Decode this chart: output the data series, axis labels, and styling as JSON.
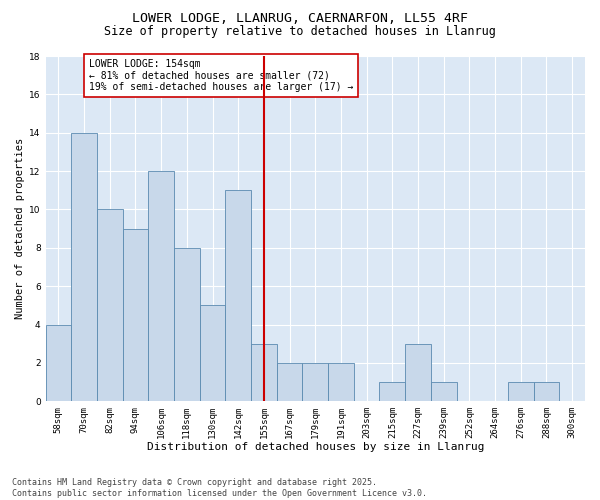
{
  "title_line1": "LOWER LODGE, LLANRUG, CAERNARFON, LL55 4RF",
  "title_line2": "Size of property relative to detached houses in Llanrug",
  "xlabel": "Distribution of detached houses by size in Llanrug",
  "ylabel": "Number of detached properties",
  "categories": [
    "58sqm",
    "70sqm",
    "82sqm",
    "94sqm",
    "106sqm",
    "118sqm",
    "130sqm",
    "142sqm",
    "155sqm",
    "167sqm",
    "179sqm",
    "191sqm",
    "203sqm",
    "215sqm",
    "227sqm",
    "239sqm",
    "252sqm",
    "264sqm",
    "276sqm",
    "288sqm",
    "300sqm"
  ],
  "values": [
    4,
    14,
    10,
    9,
    12,
    8,
    5,
    11,
    3,
    2,
    2,
    2,
    0,
    1,
    3,
    1,
    0,
    0,
    1,
    1,
    0
  ],
  "bar_color": "#c8d8ea",
  "bar_edge_color": "#5a8ab0",
  "highlight_index": 8,
  "highlight_line_color": "#cc0000",
  "annotation_text": "LOWER LODGE: 154sqm\n← 81% of detached houses are smaller (72)\n19% of semi-detached houses are larger (17) →",
  "annotation_box_color": "#cc0000",
  "annotation_text_color": "#000000",
  "ylim": [
    0,
    18
  ],
  "yticks": [
    0,
    2,
    4,
    6,
    8,
    10,
    12,
    14,
    16,
    18
  ],
  "background_color": "#dce8f5",
  "footer_text": "Contains HM Land Registry data © Crown copyright and database right 2025.\nContains public sector information licensed under the Open Government Licence v3.0.",
  "title_fontsize": 9.5,
  "subtitle_fontsize": 8.5,
  "axis_label_fontsize": 8,
  "tick_fontsize": 6.5,
  "annotation_fontsize": 7,
  "footer_fontsize": 6,
  "ylabel_fontsize": 7.5
}
